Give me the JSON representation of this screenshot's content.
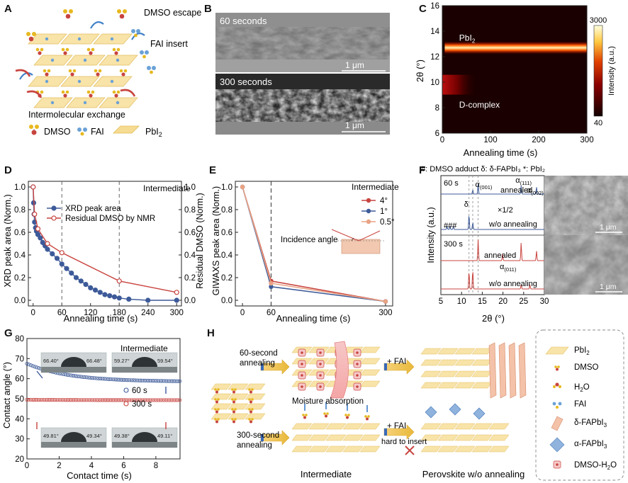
{
  "panels": {
    "A": {
      "letter": "A",
      "dmso_escape": "DMSO escape",
      "fai_insert": "FAI insert",
      "caption": "Intermolecular exchange",
      "legend": {
        "dmso": "DMSO",
        "fai": "FAI",
        "pbi2": "PbI",
        "pbi2_sub": "2"
      }
    },
    "B": {
      "letter": "B",
      "top_label": "60 seconds",
      "bottom_label": "300 seconds",
      "scale_top": "1 μm",
      "scale_bottom": "1 μm"
    },
    "C": {
      "letter": "C",
      "label_pbi2": "PbI",
      "label_pbi2_sub": "2",
      "label_dcomplex": "D-complex",
      "colorbar_title": "Intensity (a.u.)",
      "colorbar_max": "3000",
      "colorbar_min": "40",
      "ylabel": "2θ (°)",
      "xlabel": "Annealing time (s)",
      "colors": {
        "dark": "#1a0000",
        "mid": "#b00000",
        "hot": "#ffd24a",
        "white": "#ffffe8"
      }
    },
    "D": {
      "letter": "D",
      "note": "Intermediate",
      "ylabel_left": "XRD peak area (Norm.)",
      "ylabel_right": "Residual DMSO (Norm.)",
      "xlabel": "Annealing time (s)"
    },
    "E": {
      "letter": "E",
      "ylabel": "GIWAXS peak area (Norm.)",
      "xlabel": "Annealing time (s)",
      "legend_title": "Intermediate",
      "inset_label": "Incidence angle"
    },
    "F": {
      "letter": "F",
      "header": "#: DMSO adduct  δ: δ-FAPbI₃ *: PbI₂",
      "time_60": "60 s",
      "time_300": "300 s",
      "annealed": "annealed",
      "wo_annealing": "w/o annealing",
      "x_half": "×1/2",
      "delta": "δ",
      "hashes": "###",
      "alpha001": "α",
      "alpha001_sub": "(001)",
      "alpha111": "α",
      "alpha111_sub": "(111)",
      "alpha002": "α",
      "alpha002_sub": "(002)",
      "alpha011": "α",
      "alpha011_sub": "(011)",
      "ylabel": "Intensity (a.u.)",
      "xlabel": "2θ (°)",
      "scale_top": "1 μm",
      "scale_bottom": "1 μm"
    },
    "G": {
      "letter": "G",
      "note": "Intermediate",
      "ylabel": "Contact angle (°)",
      "xlabel": "Contact time (s)",
      "legend_60": "60 s",
      "legend_300": "300 s",
      "photo_angles": [
        "66.40°",
        "66.48°",
        "59.27°",
        "59.54°",
        "49.81°",
        "49.34°",
        "49.38°",
        "49.11°"
      ]
    },
    "H": {
      "letter": "H",
      "ann60": "60-second",
      "ann60b": "annealing",
      "ann300": "300-second",
      "ann300b": "annealing",
      "fai_top": "+ FAI",
      "fai_bottom": "+ FAI",
      "moisture": "Moisture absorption",
      "hard": "hard to insert",
      "intermediate": "Intermediate",
      "perovskite": "Perovskite w/o annealing",
      "legend": {
        "pbi2": "PbI",
        "pbi2_sub": "2",
        "dmso": "DMSO",
        "h2o": "H",
        "h2o_sub": "2",
        "h2o_end": "O",
        "fai": "FAI",
        "delta": "δ-FAPbI",
        "delta_sub": "3",
        "alpha": "α-FAPbI",
        "alpha_sub": "3",
        "dmso_h2o": "DMSO-H",
        "dmso_h2o_sub": "2",
        "dmso_h2o_end": "O"
      }
    }
  },
  "chart_data": [
    {
      "id": "C",
      "type": "heatmap",
      "xlabel": "Annealing time (s)",
      "ylabel": "2θ (°)",
      "xlim": [
        0,
        300
      ],
      "ylim": [
        6,
        16
      ],
      "xticks": [
        0,
        100,
        200,
        300
      ],
      "yticks": [
        6,
        8,
        10,
        12,
        14,
        16
      ],
      "colorbar": {
        "min": 40,
        "max": 3000
      },
      "features": [
        {
          "name": "PbI2",
          "two_theta": 12.7,
          "onset_time": 5
        },
        {
          "name": "D-complex",
          "two_theta": 9.8,
          "fade_time": 70
        }
      ]
    },
    {
      "id": "D",
      "type": "line",
      "xlabel": "Annealing time (s)",
      "ylabel": "XRD peak area (Norm.)",
      "y2label": "Residual DMSO (Norm.)",
      "xlim": [
        -10,
        310
      ],
      "ylim": [
        -0.05,
        1.05
      ],
      "xticks": [
        0,
        60,
        120,
        180,
        240,
        300
      ],
      "yticks": [
        0.0,
        0.2,
        0.4,
        0.6,
        0.8,
        1.0
      ],
      "dashed_x": [
        60,
        180
      ],
      "series": [
        {
          "name": "XRD peak area",
          "color": "#3d5a99",
          "marker": "filled-circle",
          "x": [
            0,
            1,
            2,
            3,
            5,
            7,
            10,
            15,
            20,
            25,
            30,
            40,
            50,
            60,
            70,
            80,
            90,
            100,
            110,
            120,
            130,
            140,
            150,
            160,
            170,
            180,
            200,
            240,
            300
          ],
          "y": [
            1.0,
            0.86,
            0.76,
            0.69,
            0.64,
            0.61,
            0.58,
            0.55,
            0.51,
            0.48,
            0.45,
            0.41,
            0.37,
            0.32,
            0.28,
            0.24,
            0.2,
            0.17,
            0.14,
            0.11,
            0.09,
            0.07,
            0.05,
            0.04,
            0.03,
            0.02,
            0.01,
            0.0,
            0.0
          ]
        },
        {
          "name": "Residual DMSO by NMR",
          "color": "#c8443f",
          "marker": "open-circle",
          "x": [
            0,
            3,
            10,
            30,
            60,
            180,
            300
          ],
          "y": [
            1.0,
            0.76,
            0.63,
            0.5,
            0.42,
            0.17,
            0.07
          ]
        }
      ]
    },
    {
      "id": "E",
      "type": "line",
      "xlabel": "Annealing time (s)",
      "ylabel": "GIWAXS peak area (Norm.)",
      "xlim": [
        -15,
        315
      ],
      "ylim": [
        -0.05,
        1.05
      ],
      "xticks": [
        0,
        60,
        300
      ],
      "yticks": [
        0.0,
        0.2,
        0.4,
        0.6,
        0.8,
        1.0
      ],
      "dashed_x": [
        60
      ],
      "series": [
        {
          "name": "4°",
          "color": "#c8443f",
          "x": [
            0,
            60,
            300
          ],
          "y": [
            1.0,
            0.17,
            -0.01
          ]
        },
        {
          "name": "1°",
          "color": "#3d5a99",
          "x": [
            0,
            60,
            300
          ],
          "y": [
            1.0,
            0.12,
            -0.01
          ]
        },
        {
          "name": "0.5°",
          "color": "#e8a384",
          "x": [
            0,
            60,
            300
          ],
          "y": [
            1.0,
            0.15,
            -0.01
          ]
        }
      ]
    },
    {
      "id": "F",
      "type": "line",
      "xlabel": "2θ (°)",
      "ylabel": "Intensity (a.u.)",
      "xlim": [
        5,
        30
      ],
      "xticks": [
        5,
        10,
        15,
        20,
        25,
        30
      ],
      "peaks": {
        "delta": 11.8,
        "PbI2": 12.7,
        "alpha001": 14.0,
        "alpha011": 19.9,
        "alpha111": 24.4,
        "alpha002": 28.1
      }
    },
    {
      "id": "G",
      "type": "scatter",
      "xlabel": "Contact time (s)",
      "ylabel": "Contact angle (°)",
      "xlim": [
        0,
        9.5
      ],
      "ylim": [
        20,
        80
      ],
      "xticks": [
        0,
        2,
        4,
        6,
        8
      ],
      "yticks": [
        20,
        30,
        40,
        50,
        60,
        70,
        80
      ],
      "series": [
        {
          "name": "60 s",
          "color": "#3d5a99",
          "start": 67.5,
          "end": 58.5,
          "tau": 2.6
        },
        {
          "name": "300 s",
          "color": "#c8443f",
          "start": 49.5,
          "end": 49.3,
          "tau": 3.0
        }
      ]
    }
  ]
}
